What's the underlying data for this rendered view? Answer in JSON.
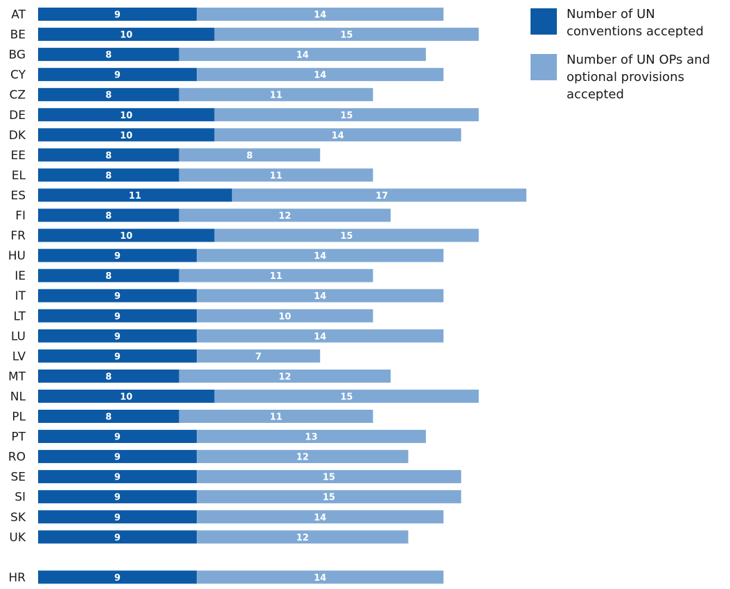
{
  "chart_data": {
    "type": "bar",
    "orientation": "horizontal",
    "stacked": true,
    "categories": [
      "AT",
      "BE",
      "BG",
      "CY",
      "CZ",
      "DE",
      "DK",
      "EE",
      "EL",
      "ES",
      "FI",
      "FR",
      "HU",
      "IE",
      "IT",
      "LT",
      "LU",
      "LV",
      "MT",
      "NL",
      "PL",
      "PT",
      "RO",
      "SE",
      "SI",
      "SK",
      "UK",
      "HR"
    ],
    "series": [
      {
        "name": "Number of UN conventions accepted",
        "color": "#0c5aa6",
        "values": [
          9,
          10,
          8,
          9,
          8,
          10,
          10,
          8,
          8,
          11,
          8,
          10,
          9,
          8,
          9,
          9,
          9,
          9,
          8,
          10,
          8,
          9,
          9,
          9,
          9,
          9,
          9,
          9
        ]
      },
      {
        "name": "Number of UN OPs and optional provisions accepted",
        "color": "#7fa9d4",
        "values": [
          14,
          15,
          14,
          14,
          11,
          15,
          14,
          8,
          11,
          17,
          12,
          15,
          14,
          11,
          14,
          10,
          14,
          7,
          12,
          15,
          11,
          13,
          12,
          15,
          15,
          14,
          12,
          14
        ]
      }
    ],
    "data_labels": true,
    "grid": false,
    "legend_position": "top-right",
    "xlim": [
      0,
      28
    ]
  }
}
